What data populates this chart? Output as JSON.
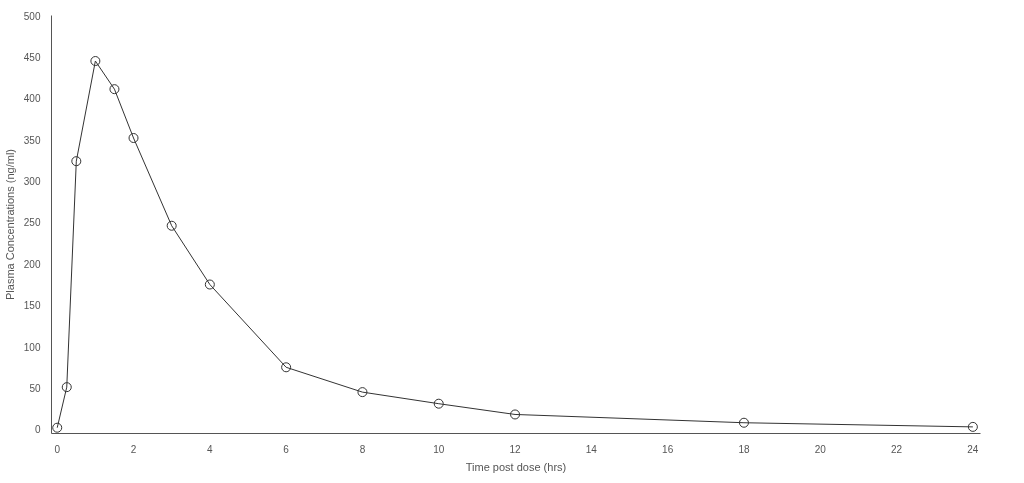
{
  "chart_data": {
    "type": "line",
    "xlabel": "Time post dose (hrs)",
    "ylabel": "Plasma Concentrations (ng/ml)",
    "x": [
      0,
      0.25,
      0.5,
      1,
      1.5,
      2,
      3,
      4,
      6,
      8,
      10,
      12,
      18,
      24
    ],
    "series": [
      {
        "color": "#333333",
        "values": [
          2,
          51,
          324,
          445,
          411,
          352,
          246,
          175,
          75,
          45,
          31,
          18,
          8,
          3
        ]
      }
    ],
    "xlim": [
      -0.15,
      24.2
    ],
    "ylim": [
      -5,
      500
    ],
    "xticks": [
      0,
      2,
      4,
      6,
      8,
      10,
      12,
      14,
      16,
      18,
      20,
      22,
      24
    ],
    "yticks": [
      0,
      50,
      100,
      150,
      200,
      250,
      300,
      350,
      400,
      450,
      500
    ],
    "grid": false,
    "marker": "circle",
    "line_style": "solid"
  }
}
